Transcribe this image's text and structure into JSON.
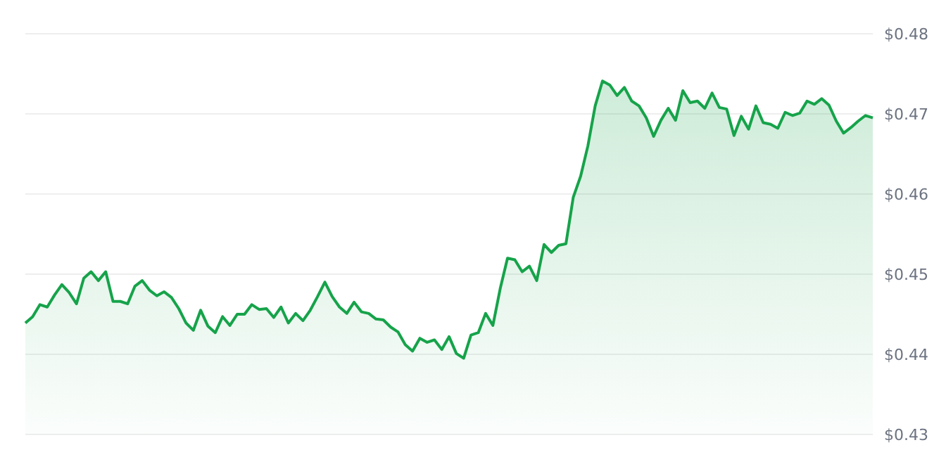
{
  "chart_data": {
    "type": "area",
    "categories": [
      null,
      null,
      null,
      null,
      null,
      null,
      null,
      null,
      null,
      null,
      null,
      null,
      null,
      null,
      null,
      null,
      null,
      null,
      null,
      null,
      null,
      null,
      null,
      null,
      null,
      null,
      null,
      null,
      null,
      null,
      null,
      null,
      null,
      null,
      null,
      null,
      null,
      null,
      null,
      null,
      null,
      null,
      null,
      null,
      null,
      null,
      null,
      null,
      null,
      null,
      null,
      null,
      null,
      null,
      null,
      null,
      null,
      null,
      null,
      null,
      null,
      null,
      null,
      null,
      null,
      null,
      null,
      null,
      null,
      null,
      null,
      null,
      null,
      null,
      null,
      null,
      null,
      null,
      null,
      null,
      null,
      null,
      null,
      null,
      null,
      null,
      null,
      null,
      null,
      null,
      null,
      null,
      null,
      null,
      null,
      null,
      null,
      null,
      null,
      null,
      null,
      null,
      null,
      null,
      null,
      null,
      null,
      null,
      null,
      null,
      null,
      null,
      null,
      null,
      null,
      null,
      null
    ],
    "series": [
      {
        "color": "#16a34a",
        "values": [
          0.4439,
          0.4447,
          0.4462,
          0.4459,
          0.4474,
          0.4487,
          0.4477,
          0.4463,
          0.4495,
          0.4503,
          0.4492,
          0.4503,
          0.4466,
          0.4466,
          0.4463,
          0.4485,
          0.4492,
          0.448,
          0.4473,
          0.4478,
          0.4471,
          0.4457,
          0.4439,
          0.443,
          0.4455,
          0.4435,
          0.4427,
          0.4447,
          0.4436,
          0.445,
          0.445,
          0.4462,
          0.4456,
          0.4457,
          0.4446,
          0.4459,
          0.4439,
          0.4451,
          0.4442,
          0.4455,
          0.4472,
          0.449,
          0.4472,
          0.4459,
          0.4451,
          0.4465,
          0.4453,
          0.4451,
          0.4444,
          0.4443,
          0.4434,
          0.4428,
          0.4412,
          0.4404,
          0.442,
          0.4415,
          0.4418,
          0.4406,
          0.4422,
          0.4401,
          0.4395,
          0.4424,
          0.4427,
          0.4451,
          0.4436,
          0.4482,
          0.452,
          0.4518,
          0.4503,
          0.451,
          0.4492,
          0.4537,
          0.4527,
          0.4536,
          0.4538,
          0.4596,
          0.4622,
          0.466,
          0.471,
          0.4741,
          0.4736,
          0.4723,
          0.4733,
          0.4716,
          0.471,
          0.4695,
          0.4672,
          0.4692,
          0.4707,
          0.4692,
          0.4729,
          0.4714,
          0.4716,
          0.4707,
          0.4726,
          0.4708,
          0.4706,
          0.4673,
          0.4697,
          0.4681,
          0.471,
          0.4689,
          0.4687,
          0.4682,
          0.4702,
          0.4698,
          0.4701,
          0.4716,
          0.4712,
          0.4719,
          0.4711,
          0.4691,
          0.4676,
          0.4683,
          0.4691,
          0.4698,
          0.4695
        ]
      }
    ],
    "ylim": [
      0.43,
      0.48
    ],
    "yticks": [
      {
        "value": 0.43,
        "label": "$0.43"
      },
      {
        "value": 0.44,
        "label": "$0.44"
      },
      {
        "value": 0.45,
        "label": "$0.45"
      },
      {
        "value": 0.46,
        "label": "$0.46"
      },
      {
        "value": 0.47,
        "label": "$0.47"
      },
      {
        "value": 0.48,
        "label": "$0.48"
      }
    ],
    "grid": "y",
    "legend": false,
    "marker": "none",
    "line_style": "solid",
    "tick_labels": "y"
  }
}
